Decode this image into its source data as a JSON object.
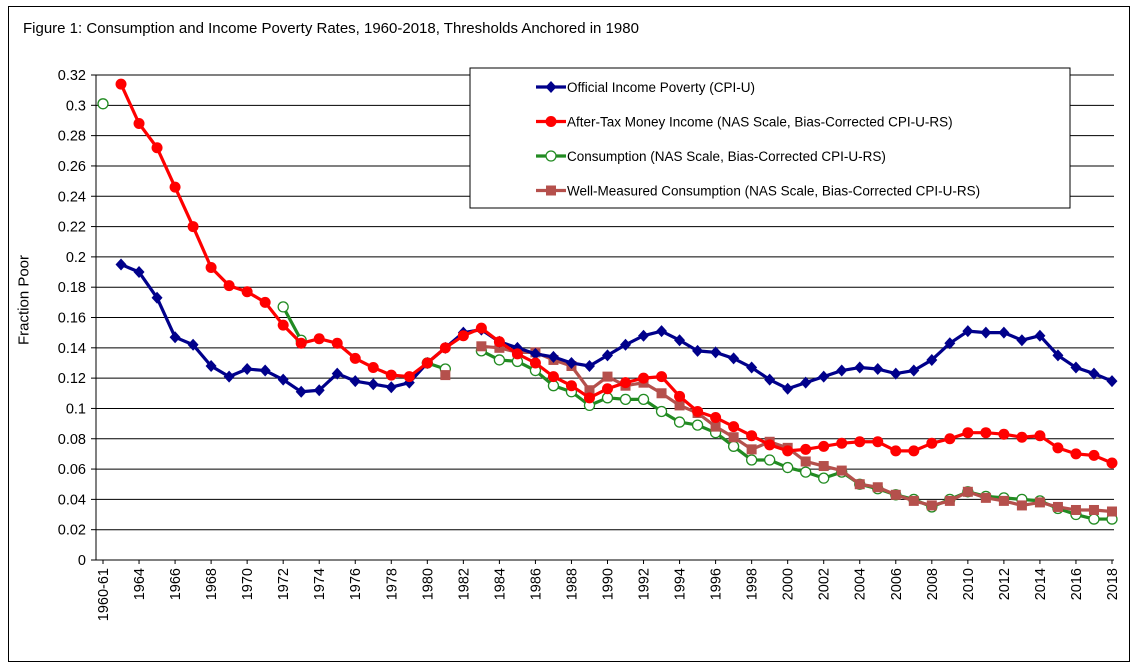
{
  "figure": {
    "title": "Figure 1: Consumption and Income Poverty Rates, 1960-2018, Thresholds Anchored in 1980"
  },
  "chart_data": {
    "type": "line",
    "title": "Figure 1: Consumption and Income Poverty Rates, 1960-2018, Thresholds Anchored in 1980",
    "xlabel": "",
    "ylabel": "Fraction Poor",
    "ylim": [
      0,
      0.32
    ],
    "yticks": [
      0,
      0.02,
      0.04,
      0.06,
      0.08,
      0.1,
      0.12,
      0.14,
      0.16,
      0.18,
      0.2,
      0.22,
      0.24,
      0.26,
      0.28,
      0.3,
      0.32
    ],
    "ytick_labels": [
      "0",
      "0.02",
      "0.04",
      "0.06",
      "0.08",
      "0.1",
      "0.12",
      "0.14",
      "0.16",
      "0.18",
      "0.2",
      "0.22",
      "0.24",
      "0.26",
      "0.28",
      "0.3",
      "0.32"
    ],
    "xtick_labels": [
      "1960-61",
      "1964",
      "1966",
      "1968",
      "1970",
      "1972",
      "1974",
      "1976",
      "1978",
      "1980",
      "1982",
      "1984",
      "1986",
      "1988",
      "1990",
      "1992",
      "1994",
      "1996",
      "1998",
      "2000",
      "2002",
      "2004",
      "2006",
      "2008",
      "2010",
      "2012",
      "2014",
      "2016",
      "2018"
    ],
    "categories": [
      "1960-61",
      "1963",
      "1964",
      "1965",
      "1966",
      "1967",
      "1968",
      "1969",
      "1970",
      "1971",
      "1972",
      "1973",
      "1974",
      "1975",
      "1976",
      "1977",
      "1978",
      "1979",
      "1980",
      "1981",
      "1982",
      "1983",
      "1984",
      "1985",
      "1986",
      "1987",
      "1988",
      "1989",
      "1990",
      "1991",
      "1992",
      "1993",
      "1994",
      "1995",
      "1996",
      "1997",
      "1998",
      "1999",
      "2000",
      "2001",
      "2002",
      "2003",
      "2004",
      "2005",
      "2006",
      "2007",
      "2008",
      "2009",
      "2010",
      "2011",
      "2012",
      "2013",
      "2014",
      "2015",
      "2016",
      "2017",
      "2018"
    ],
    "grid": true,
    "legend_position": "top-right",
    "series": [
      {
        "name": "Official Income Poverty (CPI-U)",
        "color": "#00008B",
        "marker": "diamond",
        "values": [
          null,
          0.195,
          0.19,
          0.173,
          0.147,
          0.142,
          0.128,
          0.121,
          0.126,
          0.125,
          0.119,
          0.111,
          0.112,
          0.123,
          0.118,
          0.116,
          0.114,
          0.117,
          0.13,
          0.14,
          0.15,
          0.152,
          0.144,
          0.14,
          0.136,
          0.134,
          0.13,
          0.128,
          0.135,
          0.142,
          0.148,
          0.151,
          0.145,
          0.138,
          0.137,
          0.133,
          0.127,
          0.119,
          0.113,
          0.117,
          0.121,
          0.125,
          0.127,
          0.126,
          0.123,
          0.125,
          0.132,
          0.143,
          0.151,
          0.15,
          0.15,
          0.145,
          0.148,
          0.135,
          0.127,
          0.123,
          0.118
        ]
      },
      {
        "name": "After-Tax Money Income (NAS Scale, Bias-Corrected CPI-U-RS)",
        "color": "#FF0000",
        "marker": "circle",
        "values": [
          null,
          0.314,
          0.288,
          0.272,
          0.246,
          0.22,
          0.193,
          0.181,
          0.177,
          0.17,
          0.155,
          0.143,
          0.146,
          0.143,
          0.133,
          0.127,
          0.122,
          0.121,
          0.13,
          0.14,
          0.148,
          0.153,
          0.144,
          0.136,
          0.13,
          0.121,
          0.115,
          0.107,
          0.113,
          0.117,
          0.12,
          0.121,
          0.108,
          0.098,
          0.094,
          0.088,
          0.082,
          0.076,
          0.072,
          0.073,
          0.075,
          0.077,
          0.078,
          0.078,
          0.072,
          0.072,
          0.077,
          0.08,
          0.084,
          0.084,
          0.083,
          0.081,
          0.082,
          0.074,
          0.07,
          0.069,
          0.064
        ]
      },
      {
        "name": "Consumption (NAS Scale, Bias-Corrected CPI-U-RS)",
        "color": "#228B22",
        "marker": "open-circle",
        "values": [
          0.301,
          null,
          null,
          null,
          null,
          null,
          null,
          null,
          null,
          null,
          0.167,
          0.145,
          null,
          null,
          null,
          null,
          null,
          null,
          0.13,
          0.126,
          null,
          0.138,
          0.132,
          0.131,
          0.125,
          0.115,
          0.111,
          0.102,
          0.107,
          0.106,
          0.106,
          0.098,
          0.091,
          0.089,
          0.084,
          0.075,
          0.066,
          0.066,
          0.061,
          0.058,
          0.054,
          0.058,
          0.05,
          0.047,
          0.043,
          0.04,
          0.035,
          0.04,
          0.045,
          0.042,
          0.041,
          0.04,
          0.039,
          0.034,
          0.03,
          0.027,
          0.027
        ]
      },
      {
        "name": "Well-Measured Consumption (NAS Scale, Bias-Corrected CPI-U-RS)",
        "color": "#B5504C",
        "marker": "square",
        "values": [
          null,
          null,
          null,
          null,
          null,
          null,
          null,
          null,
          null,
          null,
          null,
          null,
          null,
          null,
          null,
          null,
          null,
          null,
          null,
          0.122,
          null,
          0.141,
          0.14,
          0.137,
          0.137,
          0.132,
          0.128,
          0.112,
          0.121,
          0.115,
          0.117,
          0.11,
          0.102,
          0.097,
          0.088,
          0.081,
          0.073,
          0.078,
          0.074,
          0.065,
          0.062,
          0.059,
          0.05,
          0.048,
          0.043,
          0.039,
          0.036,
          0.039,
          0.045,
          0.041,
          0.039,
          0.036,
          0.038,
          0.035,
          0.033,
          0.033,
          0.032
        ]
      }
    ]
  }
}
